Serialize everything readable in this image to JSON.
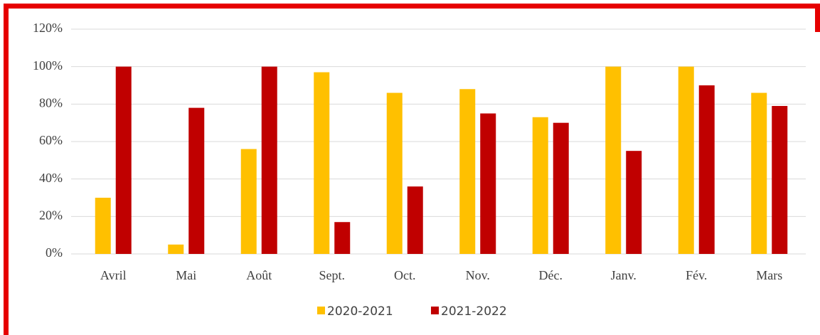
{
  "chart_data": {
    "type": "bar",
    "categories": [
      "Avril",
      "Mai",
      "Août",
      "Sept.",
      "Oct.",
      "Nov.",
      "Déc.",
      "Janv.",
      "Fév.",
      "Mars"
    ],
    "series": [
      {
        "name": "2020-2021",
        "color": "#ffc000",
        "values": [
          30,
          5,
          56,
          97,
          86,
          88,
          73,
          100,
          100,
          86
        ]
      },
      {
        "name": "2021-2022",
        "color": "#c00000",
        "values": [
          100,
          78,
          100,
          17,
          36,
          75,
          70,
          55,
          90,
          79
        ]
      }
    ],
    "ylim": [
      0,
      120
    ],
    "yticks": [
      {
        "value": 0,
        "label": "0%"
      },
      {
        "value": 20,
        "label": "20%"
      },
      {
        "value": 40,
        "label": "40%"
      },
      {
        "value": 60,
        "label": "60%"
      },
      {
        "value": 80,
        "label": "80%"
      },
      {
        "value": 100,
        "label": "100%"
      },
      {
        "value": 120,
        "label": "120%"
      }
    ],
    "grid": true,
    "legend": "bottom"
  }
}
